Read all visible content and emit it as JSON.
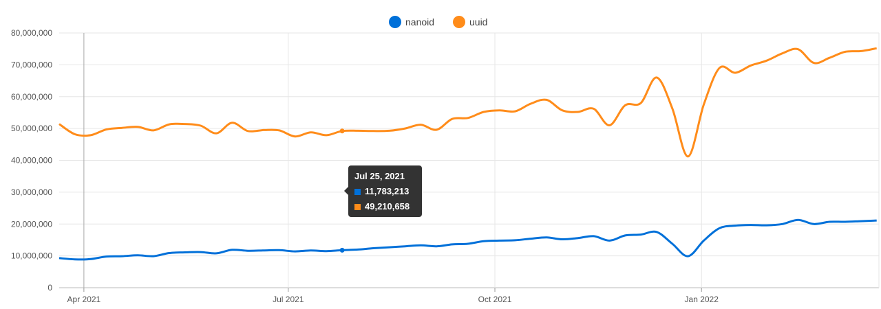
{
  "chart_data": {
    "type": "line",
    "x": [
      "2021-03-21",
      "2021-03-28",
      "2021-04-04",
      "2021-04-11",
      "2021-04-18",
      "2021-04-25",
      "2021-05-02",
      "2021-05-09",
      "2021-05-16",
      "2021-05-23",
      "2021-05-30",
      "2021-06-06",
      "2021-06-13",
      "2021-06-20",
      "2021-06-27",
      "2021-07-04",
      "2021-07-11",
      "2021-07-18",
      "2021-07-25",
      "2021-08-01",
      "2021-08-08",
      "2021-08-15",
      "2021-08-22",
      "2021-08-29",
      "2021-09-05",
      "2021-09-12",
      "2021-09-19",
      "2021-09-26",
      "2021-10-03",
      "2021-10-10",
      "2021-10-17",
      "2021-10-24",
      "2021-10-31",
      "2021-11-07",
      "2021-11-14",
      "2021-11-21",
      "2021-11-28",
      "2021-12-05",
      "2021-12-12",
      "2021-12-19",
      "2021-12-26",
      "2022-01-02",
      "2022-01-09",
      "2022-01-16",
      "2022-01-23",
      "2022-01-30",
      "2022-02-06",
      "2022-02-13",
      "2022-02-20",
      "2022-02-27",
      "2022-03-06",
      "2022-03-13",
      "2022-03-20"
    ],
    "series": [
      {
        "name": "nanoid",
        "color": "#0070d9",
        "values": [
          9300000,
          8900000,
          9000000,
          9800000,
          9900000,
          10200000,
          9900000,
          10900000,
          11100000,
          11200000,
          10800000,
          11900000,
          11600000,
          11700000,
          11800000,
          11400000,
          11700000,
          11500000,
          11783213,
          12000000,
          12400000,
          12700000,
          13000000,
          13300000,
          13000000,
          13600000,
          13800000,
          14600000,
          14800000,
          14900000,
          15400000,
          15800000,
          15200000,
          15600000,
          16200000,
          14800000,
          16400000,
          16700000,
          17500000,
          13800000,
          9900000,
          14800000,
          18700000,
          19500000,
          19700000,
          19600000,
          20000000,
          21300000,
          20000000,
          20700000,
          20700000,
          20900000,
          21100000
        ]
      },
      {
        "name": "uuid",
        "color": "#ff8c1a",
        "values": [
          51400000,
          48200000,
          47900000,
          49700000,
          50200000,
          50500000,
          49400000,
          51300000,
          51400000,
          50900000,
          48500000,
          51800000,
          49200000,
          49500000,
          49400000,
          47500000,
          48800000,
          47900000,
          49210658,
          49300000,
          49200000,
          49300000,
          50000000,
          51200000,
          49600000,
          53000000,
          53300000,
          55200000,
          55700000,
          55400000,
          57800000,
          59000000,
          55700000,
          55200000,
          56200000,
          51000000,
          57300000,
          58000000,
          66000000,
          56300000,
          41200000,
          57500000,
          69000000,
          67500000,
          69800000,
          71300000,
          73600000,
          74900000,
          70600000,
          72200000,
          74100000,
          74300000,
          75200000
        ]
      }
    ],
    "xticks": [
      {
        "date": "2021-04-01",
        "label": "Apr 2021"
      },
      {
        "date": "2021-07-01",
        "label": "Jul 2021"
      },
      {
        "date": "2021-10-01",
        "label": "Oct 2021"
      },
      {
        "date": "2022-01-01",
        "label": "Jan 2022"
      }
    ],
    "ylim": [
      0,
      80000000
    ],
    "yticks": [
      0,
      10000000,
      20000000,
      30000000,
      40000000,
      50000000,
      60000000,
      70000000,
      80000000
    ],
    "ytick_labels": [
      "0",
      "10,000,000",
      "20,000,000",
      "30,000,000",
      "40,000,000",
      "50,000,000",
      "60,000,000",
      "70,000,000",
      "80,000,000"
    ],
    "xlim": [
      "2021-03-21",
      "2022-03-21"
    ],
    "grid": true,
    "legend_position": "top-center",
    "crosshair_date": "2021-04-01",
    "tooltip": {
      "date": "2021-07-25",
      "title": "Jul 25, 2021",
      "rows": [
        {
          "series": "nanoid",
          "value_text": "11,783,213",
          "color": "#0070d9"
        },
        {
          "series": "uuid",
          "value_text": "49,210,658",
          "color": "#ff8c1a"
        }
      ]
    }
  }
}
